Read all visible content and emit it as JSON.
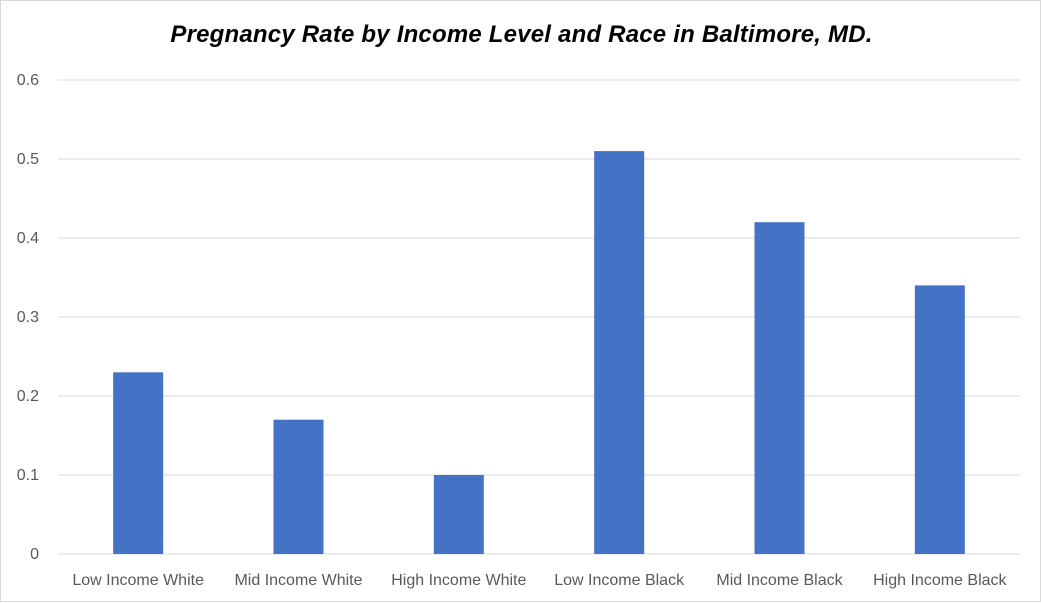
{
  "chart_data": {
    "type": "bar",
    "title": "Pregnancy Rate by Income Level and Race in Baltimore, MD.",
    "xlabel": "",
    "ylabel": "",
    "categories": [
      "Low Income White",
      "Mid Income White",
      "High Income White",
      "Low Income Black",
      "Mid Income Black",
      "High Income Black"
    ],
    "series": [
      {
        "values": [
          0.23,
          0.17,
          0.1,
          0.51,
          0.42,
          0.34
        ],
        "color": "#4472c4"
      }
    ],
    "ylim": [
      0,
      0.6
    ],
    "yticks": [
      "0",
      "0.1",
      "0.2",
      "0.3",
      "0.4",
      "0.5",
      "0.6"
    ],
    "grid": true,
    "legend": "none"
  }
}
